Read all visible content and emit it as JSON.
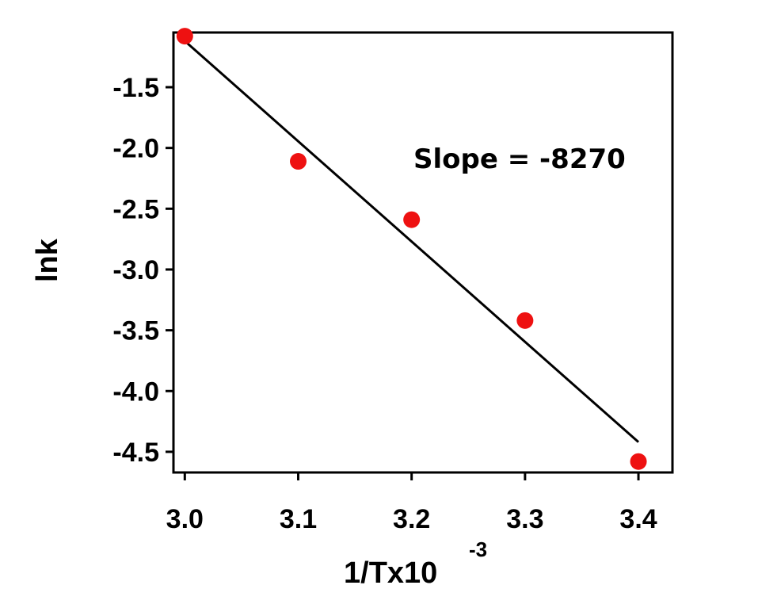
{
  "chart_data": {
    "type": "scatter",
    "title": "",
    "xlabel": "1/Tx10",
    "xlabel_superscript": "-3",
    "ylabel": "lnk",
    "xlim": [
      2.99,
      3.43
    ],
    "ylim": [
      -4.67,
      -1.05
    ],
    "x_ticks": [
      "3.0",
      "3.1",
      "3.2",
      "3.3",
      "3.4"
    ],
    "y_ticks": [
      "-1.5",
      "-2.0",
      "-2.5",
      "-3.0",
      "-3.5",
      "-4.0",
      "-4.5"
    ],
    "x_tick_values": [
      3.0,
      3.1,
      3.2,
      3.3,
      3.4
    ],
    "y_tick_values": [
      -1.5,
      -2.0,
      -2.5,
      -3.0,
      -3.5,
      -4.0,
      -4.5
    ],
    "points": [
      {
        "x": 3.0,
        "y": -1.08
      },
      {
        "x": 3.1,
        "y": -2.11
      },
      {
        "x": 3.2,
        "y": -2.59
      },
      {
        "x": 3.3,
        "y": -3.42
      },
      {
        "x": 3.4,
        "y": -4.58
      }
    ],
    "fit_line": {
      "x": [
        3.0,
        3.4
      ],
      "y": [
        -1.12,
        -4.42
      ]
    },
    "annotation": "Slope = -8270",
    "point_color": "#ee1111",
    "line_color": "#000000",
    "grid": false,
    "legend": "none"
  }
}
